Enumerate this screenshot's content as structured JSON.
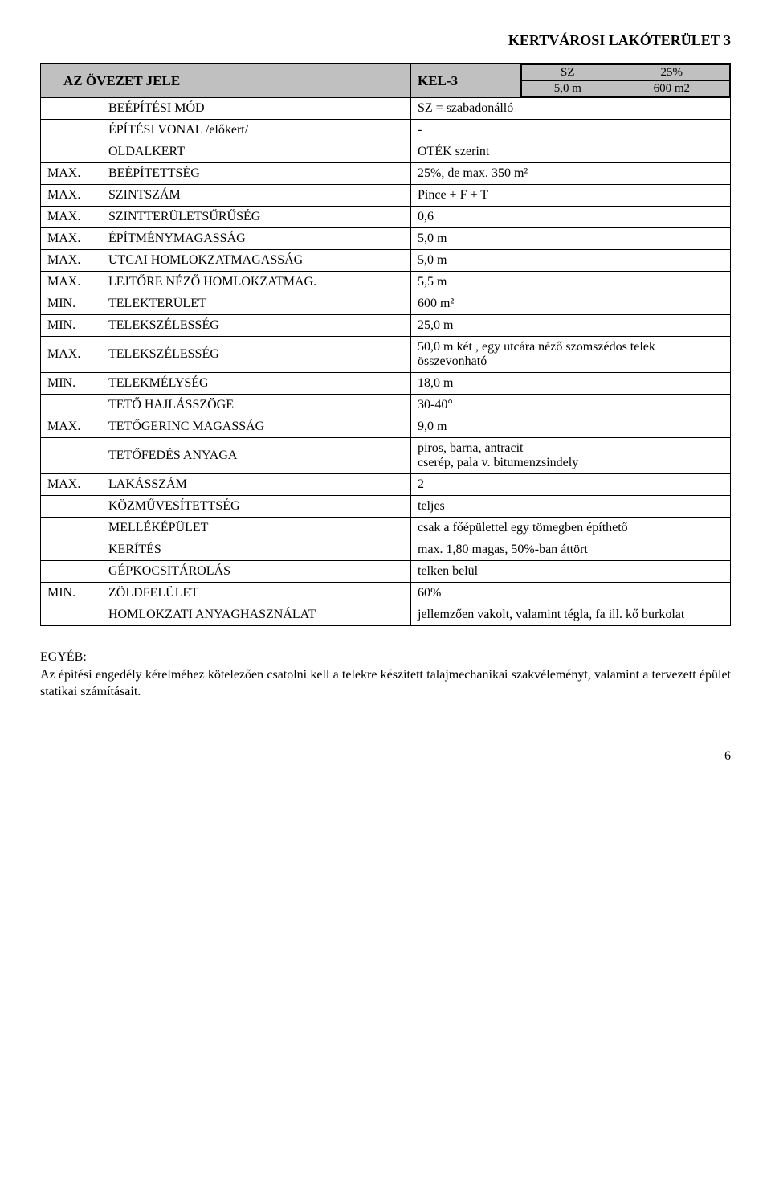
{
  "title": "KERTVÁROSI LAKÓTERÜLET 3",
  "header": {
    "label": "AZ ÖVEZET JELE",
    "code": "KEL-3",
    "mini": {
      "r1c1": "SZ",
      "r1c2": "25%",
      "r2c1": "5,0 m",
      "r2c2": "600 m2"
    }
  },
  "rows": [
    {
      "prefix": "",
      "label": "BEÉPÍTÉSI MÓD",
      "value": "SZ = szabadonálló"
    },
    {
      "prefix": "",
      "label": "ÉPÍTÉSI VONAL /előkert/",
      "value": "-"
    },
    {
      "prefix": "",
      "label": "OLDALKERT",
      "value": "OTÉK szerint"
    },
    {
      "prefix": "MAX.",
      "label": "BEÉPÍTETTSÉG",
      "value": "25%, de max. 350 m²"
    },
    {
      "prefix": "MAX.",
      "label": "SZINTSZÁM",
      "value": "Pince + F + T"
    },
    {
      "prefix": "MAX.",
      "label": "SZINTTERÜLETSŰRŰSÉG",
      "value": "0,6"
    },
    {
      "prefix": "MAX.",
      "label": "ÉPÍTMÉNYMAGASSÁG",
      "value": "5,0 m"
    },
    {
      "prefix": "MAX.",
      "label": "UTCAI  HOMLOKZATMAGASSÁG",
      "value": "5,0 m"
    },
    {
      "prefix": "MAX.",
      "label": "LEJTŐRE NÉZŐ HOMLOKZATMAG.",
      "value": "5,5 m"
    },
    {
      "prefix": "MIN.",
      "label": "TELEKTERÜLET",
      "value": "600 m²"
    },
    {
      "prefix": "MIN.",
      "label": "TELEKSZÉLESSÉG",
      "value": "25,0 m"
    },
    {
      "prefix": "MAX.",
      "label": "TELEKSZÉLESSÉG",
      "value": "50,0 m    két , egy utcára néző szomszédos telek összevonható"
    },
    {
      "prefix": "MIN.",
      "label": "TELEKMÉLYSÉG",
      "value": "18,0 m"
    },
    {
      "prefix": "",
      "label": "TETŐ  HAJLÁSSZÖGE",
      "value": "30-40°"
    },
    {
      "prefix": "MAX.",
      "label": "TETŐGERINC  MAGASSÁG",
      "value": "9,0 m"
    },
    {
      "prefix": "",
      "label": "TETŐFEDÉS  ANYAGA",
      "value": "piros, barna, antracit\ncserép, pala v. bitumenzsindely"
    },
    {
      "prefix": "MAX.",
      "label": "LAKÁSSZÁM",
      "value": "2"
    },
    {
      "prefix": "",
      "label": "KÖZMŰVESÍTETTSÉG",
      "value": "teljes"
    },
    {
      "prefix": "",
      "label": "MELLÉKÉPÜLET",
      "value": "csak a főépülettel egy tömegben építhető"
    },
    {
      "prefix": "",
      "label": "KERÍTÉS",
      "value": "max. 1,80 magas, 50%-ban áttört"
    },
    {
      "prefix": "",
      "label": "GÉPKOCSITÁROLÁS",
      "value": "telken belül"
    },
    {
      "prefix": "MIN.",
      "label": "ZÖLDFELÜLET",
      "value": "60%"
    },
    {
      "prefix": "",
      "label": "HOMLOKZATI  ANYAGHASZNÁLAT",
      "value": "jellemzően vakolt, valamint tégla, fa ill. kő burkolat"
    }
  ],
  "egyeb_label": "EGYÉB:",
  "egyeb_text": "Az építési engedély kérelméhez kötelezően csatolni kell a telekre készített talajmechanikai szakvéleményt, valamint a tervezett épület statikai számításait.",
  "page_number": "6"
}
